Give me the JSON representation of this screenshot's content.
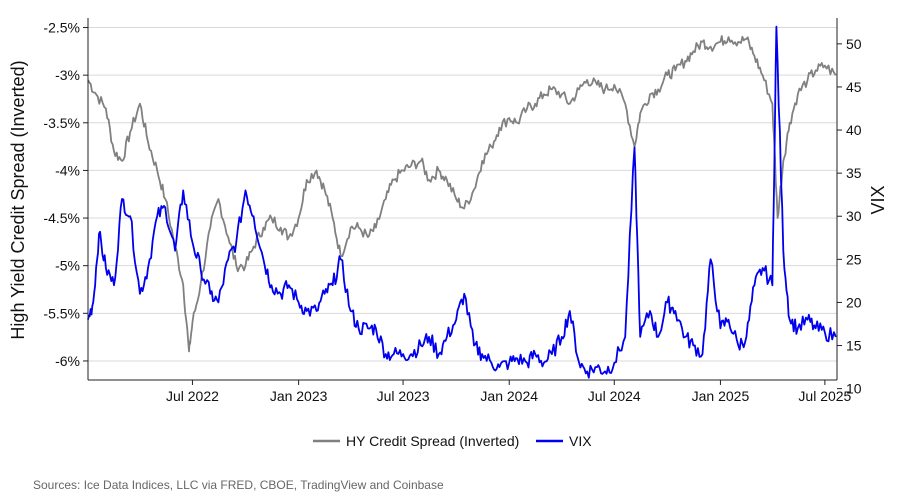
{
  "chart_data": {
    "type": "line",
    "y_left": {
      "label": "High Yield Credit Spread (Inverted)",
      "ticks": [
        "-2.5%",
        "-3%",
        "-3.5%",
        "-4%",
        "-4.5%",
        "-5%",
        "-5.5%",
        "-6%"
      ],
      "ylim": [
        -6.2,
        -2.4
      ],
      "inverted_series_on_axis": true
    },
    "y_right": {
      "label": "VIX",
      "ticks": [
        "10",
        "15",
        "20",
        "25",
        "30",
        "35",
        "40",
        "45",
        "50"
      ],
      "ylim": [
        11,
        53
      ]
    },
    "x_axis": {
      "ticks": [
        "Jul 2022",
        "Jan 2023",
        "Jul 2023",
        "Jan 2024",
        "Jul 2024",
        "Jan 2025",
        "Jul 2025"
      ],
      "range": [
        "2022-01",
        "2025-07"
      ]
    },
    "grid": "horizontal",
    "legend_position": "bottom",
    "series": [
      {
        "name": "HY Credit Spread (Inverted)",
        "color": "#808080",
        "axis": "left",
        "points": [
          [
            "2022-01",
            -3.05
          ],
          [
            "2022-01-15",
            -3.2
          ],
          [
            "2022-02",
            -3.35
          ],
          [
            "2022-02-15",
            -3.8
          ],
          [
            "2022-03",
            -3.9
          ],
          [
            "2022-03-15",
            -3.6
          ],
          [
            "2022-04",
            -3.3
          ],
          [
            "2022-04-15",
            -3.7
          ],
          [
            "2022-05",
            -4.0
          ],
          [
            "2022-05-15",
            -4.3
          ],
          [
            "2022-06",
            -4.8
          ],
          [
            "2022-06-15",
            -5.2
          ],
          [
            "2022-06-25",
            -5.9
          ],
          [
            "2022-07",
            -5.6
          ],
          [
            "2022-07-15",
            -5.2
          ],
          [
            "2022-08",
            -4.6
          ],
          [
            "2022-08-15",
            -4.3
          ],
          [
            "2022-09",
            -4.7
          ],
          [
            "2022-09-15",
            -5.0
          ],
          [
            "2022-10",
            -5.0
          ],
          [
            "2022-10-15",
            -4.8
          ],
          [
            "2022-11",
            -4.6
          ],
          [
            "2022-11-15",
            -4.5
          ],
          [
            "2022-12",
            -4.6
          ],
          [
            "2022-12-15",
            -4.7
          ],
          [
            "2023-01",
            -4.5
          ],
          [
            "2023-01-15",
            -4.1
          ],
          [
            "2023-02",
            -4.0
          ],
          [
            "2023-02-15",
            -4.2
          ],
          [
            "2023-03",
            -4.5
          ],
          [
            "2023-03-15",
            -4.9
          ],
          [
            "2023-04",
            -4.6
          ],
          [
            "2023-04-15",
            -4.6
          ],
          [
            "2023-05",
            -4.7
          ],
          [
            "2023-05-15",
            -4.6
          ],
          [
            "2023-06",
            -4.3
          ],
          [
            "2023-06-15",
            -4.1
          ],
          [
            "2023-07",
            -4.0
          ],
          [
            "2023-07-15",
            -3.95
          ],
          [
            "2023-08",
            -3.9
          ],
          [
            "2023-08-15",
            -4.1
          ],
          [
            "2023-09",
            -4.0
          ],
          [
            "2023-09-15",
            -4.1
          ],
          [
            "2023-10",
            -4.3
          ],
          [
            "2023-10-15",
            -4.4
          ],
          [
            "2023-11",
            -4.2
          ],
          [
            "2023-11-15",
            -3.9
          ],
          [
            "2023-12",
            -3.75
          ],
          [
            "2023-12-15",
            -3.55
          ],
          [
            "2024-01",
            -3.45
          ],
          [
            "2024-01-15",
            -3.5
          ],
          [
            "2024-02",
            -3.35
          ],
          [
            "2024-02-15",
            -3.3
          ],
          [
            "2024-03",
            -3.2
          ],
          [
            "2024-03-15",
            -3.15
          ],
          [
            "2024-04",
            -3.2
          ],
          [
            "2024-04-15",
            -3.3
          ],
          [
            "2024-05",
            -3.15
          ],
          [
            "2024-05-15",
            -3.05
          ],
          [
            "2024-06",
            -3.1
          ],
          [
            "2024-06-15",
            -3.15
          ],
          [
            "2024-07",
            -3.1
          ],
          [
            "2024-07-20",
            -3.3
          ],
          [
            "2024-08-05",
            -3.75
          ],
          [
            "2024-08-15",
            -3.4
          ],
          [
            "2024-09",
            -3.2
          ],
          [
            "2024-09-15",
            -3.15
          ],
          [
            "2024-10",
            -3.0
          ],
          [
            "2024-10-15",
            -2.95
          ],
          [
            "2024-11",
            -2.85
          ],
          [
            "2024-11-15",
            -2.75
          ],
          [
            "2024-12",
            -2.65
          ],
          [
            "2024-12-15",
            -2.7
          ],
          [
            "2025-01",
            -2.65
          ],
          [
            "2025-01-15",
            -2.6
          ],
          [
            "2025-02",
            -2.65
          ],
          [
            "2025-02-15",
            -2.62
          ],
          [
            "2025-03",
            -2.8
          ],
          [
            "2025-03-15",
            -3.0
          ],
          [
            "2025-04-01",
            -3.3
          ],
          [
            "2025-04-10",
            -4.5
          ],
          [
            "2025-04-20",
            -3.9
          ],
          [
            "2025-05",
            -3.5
          ],
          [
            "2025-05-15",
            -3.2
          ],
          [
            "2025-06",
            -3.05
          ],
          [
            "2025-06-15",
            -2.95
          ],
          [
            "2025-07",
            -2.9
          ],
          [
            "2025-07-20",
            -3.0
          ]
        ]
      },
      {
        "name": "VIX",
        "color": "#0000ee",
        "axis": "right",
        "points": [
          [
            "2022-01",
            18
          ],
          [
            "2022-01-10",
            20
          ],
          [
            "2022-01-20",
            28
          ],
          [
            "2022-02",
            24
          ],
          [
            "2022-02-15",
            22
          ],
          [
            "2022-03",
            32
          ],
          [
            "2022-03-15",
            30
          ],
          [
            "2022-04",
            21
          ],
          [
            "2022-04-15",
            24
          ],
          [
            "2022-05",
            30
          ],
          [
            "2022-05-15",
            31
          ],
          [
            "2022-06",
            26
          ],
          [
            "2022-06-15",
            33
          ],
          [
            "2022-07",
            27
          ],
          [
            "2022-07-15",
            24
          ],
          [
            "2022-08",
            21
          ],
          [
            "2022-08-15",
            20
          ],
          [
            "2022-09",
            25
          ],
          [
            "2022-09-15",
            27
          ],
          [
            "2022-10",
            33
          ],
          [
            "2022-10-15",
            30
          ],
          [
            "2022-11",
            25
          ],
          [
            "2022-11-15",
            22
          ],
          [
            "2022-12",
            21
          ],
          [
            "2022-12-15",
            22
          ],
          [
            "2023-01",
            20
          ],
          [
            "2023-01-15",
            19
          ],
          [
            "2023-02",
            19
          ],
          [
            "2023-02-15",
            21
          ],
          [
            "2023-03",
            22
          ],
          [
            "2023-03-15",
            25
          ],
          [
            "2023-04",
            19
          ],
          [
            "2023-04-15",
            17
          ],
          [
            "2023-05",
            17
          ],
          [
            "2023-05-15",
            17
          ],
          [
            "2023-06",
            14
          ],
          [
            "2023-06-15",
            14
          ],
          [
            "2023-07",
            14
          ],
          [
            "2023-07-15",
            14
          ],
          [
            "2023-08",
            15
          ],
          [
            "2023-08-15",
            16
          ],
          [
            "2023-09",
            14
          ],
          [
            "2023-09-15",
            16
          ],
          [
            "2023-10",
            18
          ],
          [
            "2023-10-15",
            21
          ],
          [
            "2023-11",
            15
          ],
          [
            "2023-11-15",
            14
          ],
          [
            "2023-12",
            13
          ],
          [
            "2023-12-15",
            12.5
          ],
          [
            "2024-01",
            13
          ],
          [
            "2024-01-15",
            13.5
          ],
          [
            "2024-02",
            13
          ],
          [
            "2024-02-15",
            14
          ],
          [
            "2024-03",
            13
          ],
          [
            "2024-03-15",
            14
          ],
          [
            "2024-04",
            16
          ],
          [
            "2024-04-15",
            19
          ],
          [
            "2024-05",
            13
          ],
          [
            "2024-05-15",
            12
          ],
          [
            "2024-06",
            12.5
          ],
          [
            "2024-06-15",
            12
          ],
          [
            "2024-07",
            13
          ],
          [
            "2024-07-20",
            16
          ],
          [
            "2024-08-05",
            38
          ],
          [
            "2024-08-15",
            16
          ],
          [
            "2024-09",
            19
          ],
          [
            "2024-09-15",
            16
          ],
          [
            "2024-10",
            20
          ],
          [
            "2024-10-15",
            19
          ],
          [
            "2024-11",
            16
          ],
          [
            "2024-11-15",
            15
          ],
          [
            "2024-12",
            14
          ],
          [
            "2024-12-15",
            25
          ],
          [
            "2025-01",
            17
          ],
          [
            "2025-01-15",
            18
          ],
          [
            "2025-02",
            15
          ],
          [
            "2025-02-15",
            16
          ],
          [
            "2025-03",
            22
          ],
          [
            "2025-03-15",
            24
          ],
          [
            "2025-04-01",
            22
          ],
          [
            "2025-04-08",
            52
          ],
          [
            "2025-04-20",
            26
          ],
          [
            "2025-05",
            18
          ],
          [
            "2025-05-15",
            17
          ],
          [
            "2025-06",
            18
          ],
          [
            "2025-06-15",
            17
          ],
          [
            "2025-07",
            16.5
          ],
          [
            "2025-07-20",
            16
          ]
        ]
      }
    ]
  },
  "footer": {
    "source": "Sources: Ice Data Indices, LLC via FRED, CBOE, TradingView and Coinbase"
  }
}
